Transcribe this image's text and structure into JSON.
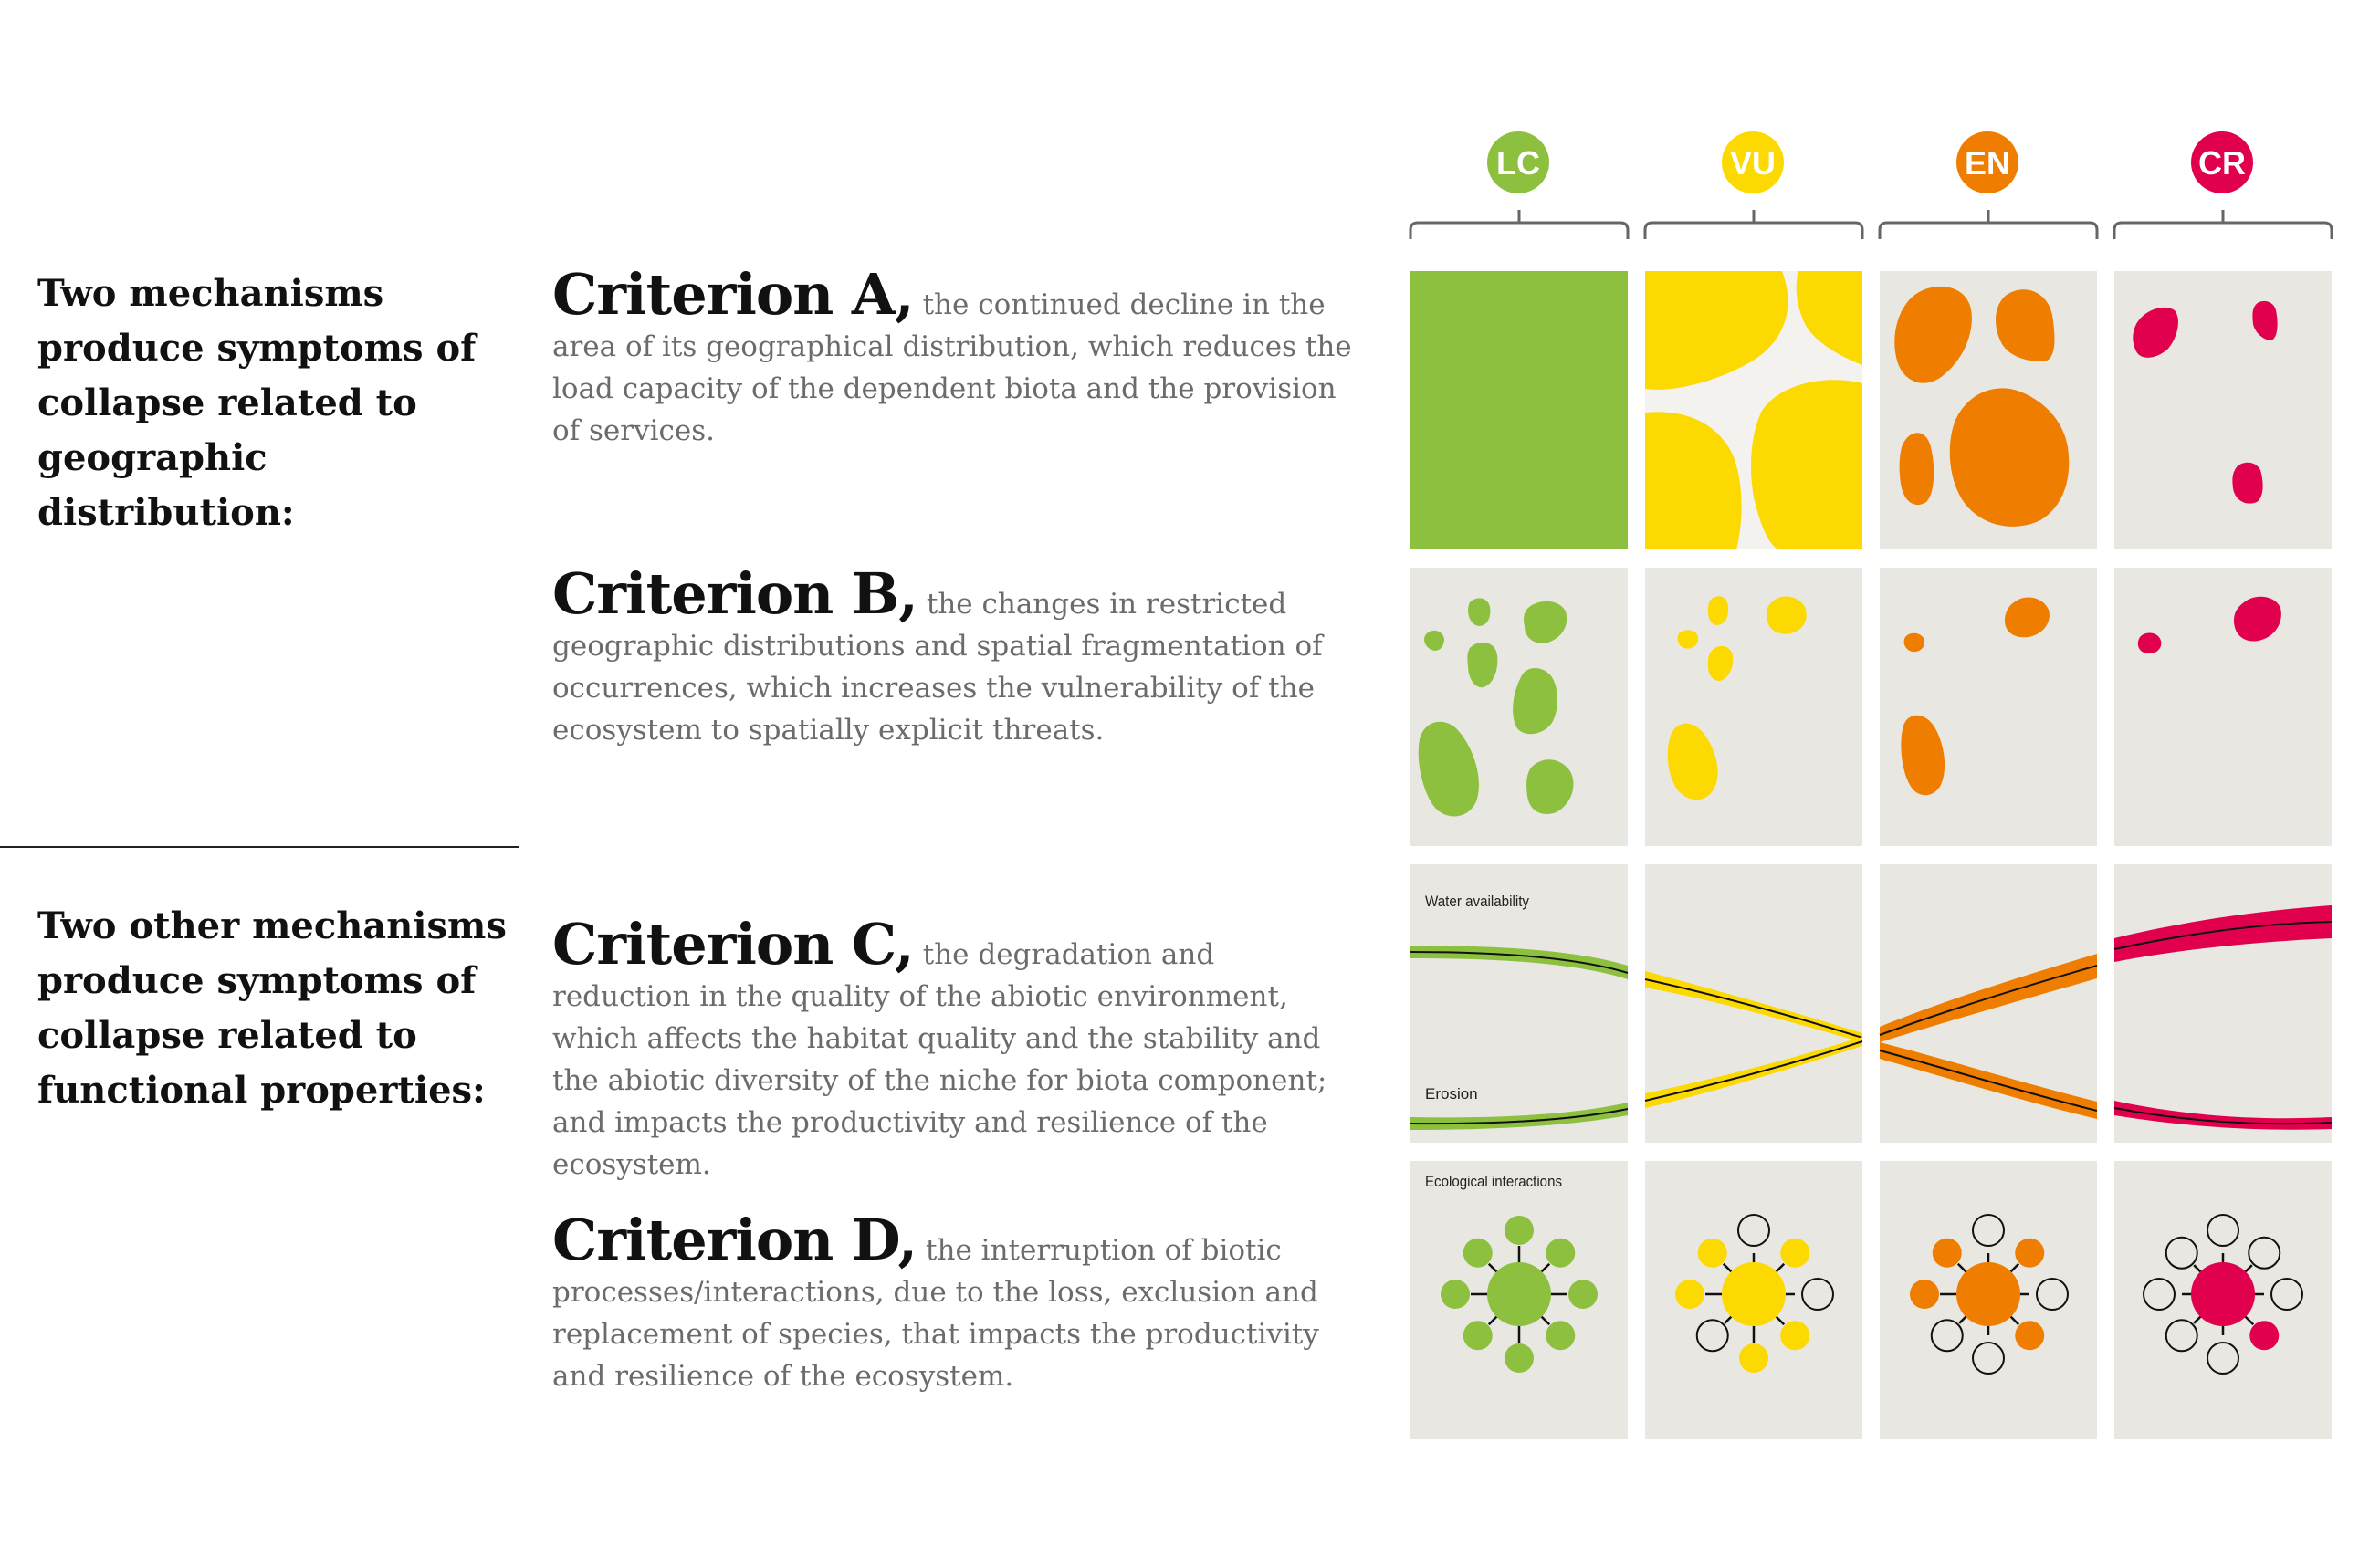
{
  "left_headings": {
    "geographic": "Two mechanisms produce symptoms of collapse related to geographic distribution:",
    "functional": "Two other mechanisms produce symptoms of collapse related to functional properties:"
  },
  "criteria": [
    {
      "title": "Criterion A,",
      "text": "the continued decline in the area of its geographical distribution, which reduces the load capacity of the dependent biota and the provision of services."
    },
    {
      "title": "Criterion B,",
      "text": "the changes in restricted geographic distributions and spatial fragmentation of occurrences, which increases the vulnerability of the ecosystem to spatially explicit threats."
    },
    {
      "title": "Criterion C,",
      "text": "the degradation and reduction in the quality of the abiotic environment, which affects the habitat quality and the stability and the abiotic diversity of the niche for biota component; and impacts the productivity and resilience of the ecosystem."
    },
    {
      "title": "Criterion D,",
      "text": "the interruption of biotic processes/interactions, due to the loss, exclusion and replacement of species, that impacts the productivity and resilience of the ecosystem."
    }
  ],
  "categories": [
    {
      "code": "LC",
      "color": "#8dc03f"
    },
    {
      "code": "VU",
      "color": "#fcd900"
    },
    {
      "code": "EN",
      "color": "#ef7d00"
    },
    {
      "code": "CR",
      "color": "#e0004d"
    }
  ],
  "panel_labels": {
    "water": "Water availability",
    "erosion": "Erosion",
    "interactions": "Ecological interactions"
  },
  "colors": {
    "panel_bg": "#e9e7e2",
    "text_dark": "#111111",
    "text_body": "#6b6b6b",
    "bracket": "#666666"
  }
}
